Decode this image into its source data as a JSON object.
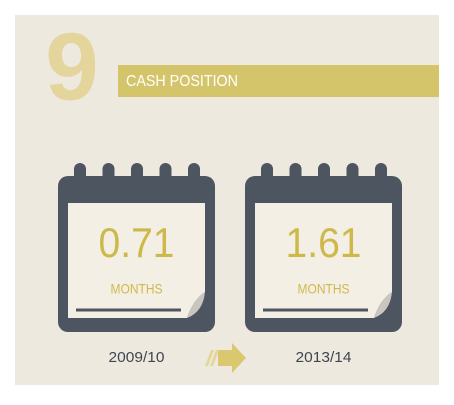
{
  "badge": "9",
  "title": "CASH POSITION",
  "items": [
    {
      "value": "0.71",
      "unit": "MONTHS",
      "period": "2009/10"
    },
    {
      "value": "1.61",
      "unit": "MONTHS",
      "period": "2013/14"
    }
  ]
}
